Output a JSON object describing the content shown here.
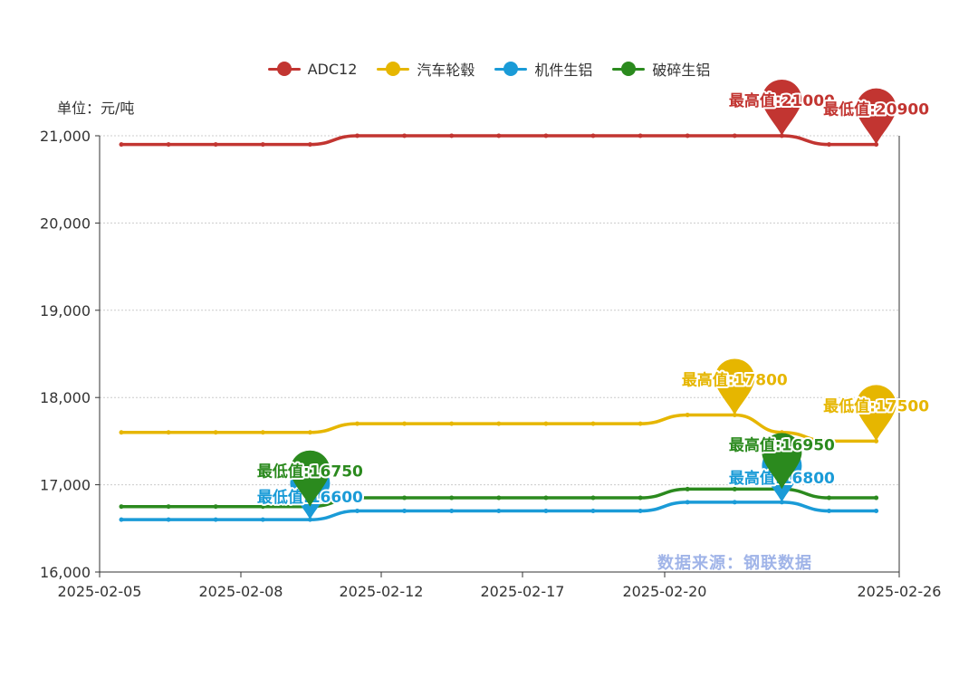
{
  "unit_label": "单位：元/吨",
  "source_label": "数据来源：钢联数据",
  "chart_data": {
    "type": "line",
    "x": [
      "2025-02-05",
      "2025-02-06",
      "2025-02-07",
      "2025-02-08",
      "2025-02-10",
      "2025-02-11",
      "2025-02-12",
      "2025-02-13",
      "2025-02-14",
      "2025-02-17",
      "2025-02-18",
      "2025-02-19",
      "2025-02-20",
      "2025-02-21",
      "2025-02-24",
      "2025-02-25",
      "2025-02-26"
    ],
    "x_tick_labels": [
      "2025-02-05",
      "2025-02-08",
      "2025-02-12",
      "2025-02-17",
      "2025-02-20",
      "2025-02-26"
    ],
    "ylim": [
      16000,
      21000
    ],
    "y_ticks": [
      16000,
      17000,
      18000,
      19000,
      20000,
      21000
    ],
    "y_tick_labels": [
      "16,000",
      "17,000",
      "18,000",
      "19,000",
      "20,000",
      "21,000"
    ],
    "grid": true,
    "legend_position": "top-center",
    "series": [
      {
        "name": "ADC12",
        "color": "#c23531",
        "values": [
          20900,
          20900,
          20900,
          20900,
          20900,
          21000,
          21000,
          21000,
          21000,
          21000,
          21000,
          21000,
          21000,
          21000,
          21000,
          20900,
          20900
        ],
        "max_label": "最高值:21000",
        "min_label": "最低值:20900"
      },
      {
        "name": "汽车轮毂",
        "color": "#e6b600",
        "values": [
          17600,
          17600,
          17600,
          17600,
          17600,
          17700,
          17700,
          17700,
          17700,
          17700,
          17700,
          17700,
          17800,
          17800,
          17600,
          17500,
          17500
        ],
        "max_label": "最高值:17800",
        "min_label": "最低值:17500"
      },
      {
        "name": "机件生铝",
        "color": "#1a9bd7",
        "values": [
          16600,
          16600,
          16600,
          16600,
          16600,
          16700,
          16700,
          16700,
          16700,
          16700,
          16700,
          16700,
          16800,
          16800,
          16800,
          16700,
          16700
        ],
        "max_label": "最高值:16800",
        "min_label": "最低值:16600"
      },
      {
        "name": "破碎生铝",
        "color": "#2b8a1e",
        "values": [
          16750,
          16750,
          16750,
          16750,
          16750,
          16850,
          16850,
          16850,
          16850,
          16850,
          16850,
          16850,
          16950,
          16950,
          16950,
          16850,
          16850
        ],
        "max_label": "最高值:16950",
        "min_label": "最低值:16750"
      }
    ]
  }
}
